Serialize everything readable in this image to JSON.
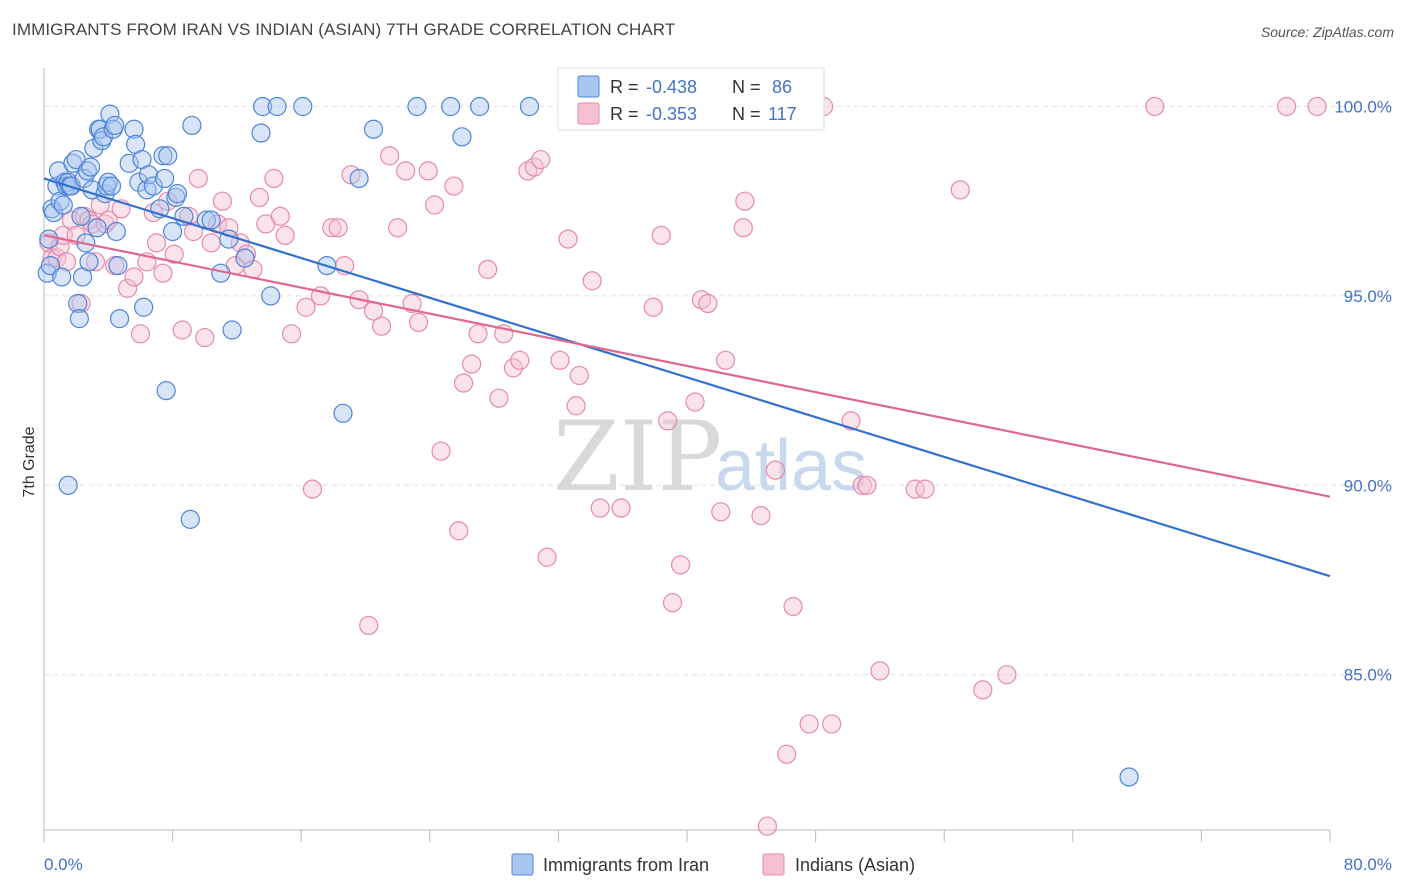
{
  "title": "IMMIGRANTS FROM IRAN VS INDIAN (ASIAN) 7TH GRADE CORRELATION CHART",
  "source": "Source: ZipAtlas.com",
  "watermark": {
    "zip": "ZIP",
    "atlas": "atlas"
  },
  "colors": {
    "iran": "#4f84d9",
    "indian": "#e68aab",
    "iran_fill": "#a9c6f0",
    "indian_fill": "#f5c0d2",
    "iran_line": "#3271cf",
    "indian_line": "#e0688f"
  },
  "stats": {
    "iran": {
      "r_label": "R =",
      "r_value": "-0.438",
      "n_label": "N =",
      "n_value": "86"
    },
    "indian": {
      "r_label": "R =",
      "r_value": "-0.353",
      "n_label": "N =",
      "n_value": "117"
    }
  },
  "chart_data": {
    "type": "scatter",
    "title": "IMMIGRANTS FROM IRAN VS INDIAN (ASIAN) 7TH GRADE CORRELATION CHART",
    "xlabel": "",
    "ylabel": "7th Grade",
    "xlim": [
      0,
      80
    ],
    "ylim": [
      80.9,
      100.7
    ],
    "x_tick_labels": [
      "0.0%",
      "80.0%"
    ],
    "y_ticks": [
      85,
      90,
      95,
      100
    ],
    "y_tick_labels": [
      "85.0%",
      "90.0%",
      "95.0%",
      "100.0%"
    ],
    "grid": true,
    "legend_position": "bottom-center",
    "series": [
      {
        "name": "Immigrants from Iran",
        "trend": {
          "x": [
            0,
            80
          ],
          "y": [
            98.1,
            87.6
          ]
        },
        "points": [
          [
            0.2,
            95.6
          ],
          [
            0.3,
            96.5
          ],
          [
            0.4,
            95.8
          ],
          [
            0.5,
            97.3
          ],
          [
            0.6,
            97.2
          ],
          [
            0.8,
            97.9
          ],
          [
            0.9,
            98.3
          ],
          [
            1.0,
            97.5
          ],
          [
            1.1,
            95.5
          ],
          [
            1.2,
            97.4
          ],
          [
            1.3,
            98.0
          ],
          [
            1.4,
            97.9
          ],
          [
            1.5,
            98.0
          ],
          [
            1.6,
            97.9
          ],
          [
            1.7,
            97.9
          ],
          [
            1.8,
            98.5
          ],
          [
            2.0,
            98.6
          ],
          [
            2.1,
            94.8
          ],
          [
            2.2,
            94.4
          ],
          [
            2.3,
            97.1
          ],
          [
            2.4,
            95.5
          ],
          [
            2.5,
            98.1
          ],
          [
            2.6,
            96.4
          ],
          [
            2.7,
            98.3
          ],
          [
            2.8,
            95.9
          ],
          [
            2.9,
            98.4
          ],
          [
            3.0,
            97.8
          ],
          [
            3.1,
            98.9
          ],
          [
            3.3,
            96.8
          ],
          [
            3.4,
            99.4
          ],
          [
            3.5,
            99.4
          ],
          [
            3.6,
            99.1
          ],
          [
            3.7,
            99.2
          ],
          [
            3.8,
            97.7
          ],
          [
            3.9,
            97.9
          ],
          [
            4.0,
            98.0
          ],
          [
            4.1,
            99.8
          ],
          [
            4.2,
            97.9
          ],
          [
            4.3,
            99.4
          ],
          [
            4.4,
            99.5
          ],
          [
            4.5,
            96.7
          ],
          [
            4.6,
            95.8
          ],
          [
            4.7,
            94.4
          ],
          [
            5.3,
            98.5
          ],
          [
            5.6,
            99.4
          ],
          [
            5.7,
            99.0
          ],
          [
            5.9,
            98.0
          ],
          [
            6.1,
            98.6
          ],
          [
            6.2,
            94.7
          ],
          [
            6.4,
            97.8
          ],
          [
            6.5,
            98.2
          ],
          [
            6.8,
            97.9
          ],
          [
            7.2,
            97.3
          ],
          [
            7.4,
            98.7
          ],
          [
            7.5,
            98.1
          ],
          [
            7.6,
            92.5
          ],
          [
            7.7,
            98.7
          ],
          [
            8.0,
            96.7
          ],
          [
            8.2,
            97.6
          ],
          [
            8.3,
            97.7
          ],
          [
            8.7,
            97.1
          ],
          [
            9.1,
            89.1
          ],
          [
            9.2,
            99.5
          ],
          [
            10.1,
            97.0
          ],
          [
            10.4,
            97.0
          ],
          [
            11.0,
            95.6
          ],
          [
            11.5,
            96.5
          ],
          [
            11.7,
            94.1
          ],
          [
            12.5,
            96.0
          ],
          [
            13.5,
            99.3
          ],
          [
            13.6,
            100.0
          ],
          [
            14.1,
            95.0
          ],
          [
            14.5,
            100.0
          ],
          [
            16.1,
            100.0
          ],
          [
            17.6,
            95.8
          ],
          [
            18.6,
            91.9
          ],
          [
            19.6,
            98.1
          ],
          [
            20.5,
            99.4
          ],
          [
            23.2,
            100.0
          ],
          [
            25.3,
            100.0
          ],
          [
            26.0,
            99.2
          ],
          [
            27.1,
            100.0
          ],
          [
            30.2,
            100.0
          ],
          [
            36.5,
            100.0
          ],
          [
            67.5,
            82.3
          ],
          [
            1.5,
            90.0
          ]
        ]
      },
      {
        "name": "Indians (Asian)",
        "trend": {
          "x": [
            0,
            80
          ],
          "y": [
            96.6,
            89.7
          ]
        },
        "points": [
          [
            0.3,
            96.4
          ],
          [
            0.5,
            96.0
          ],
          [
            0.8,
            96.0
          ],
          [
            1.0,
            96.3
          ],
          [
            1.2,
            96.6
          ],
          [
            1.4,
            95.9
          ],
          [
            1.7,
            97.0
          ],
          [
            2.0,
            96.6
          ],
          [
            2.3,
            94.8
          ],
          [
            2.5,
            97.1
          ],
          [
            2.8,
            97.0
          ],
          [
            3.0,
            96.9
          ],
          [
            3.2,
            95.9
          ],
          [
            3.5,
            97.4
          ],
          [
            3.8,
            96.9
          ],
          [
            4.0,
            97.0
          ],
          [
            4.4,
            95.8
          ],
          [
            4.8,
            97.3
          ],
          [
            5.2,
            95.2
          ],
          [
            5.6,
            95.5
          ],
          [
            6.0,
            94.0
          ],
          [
            6.4,
            95.9
          ],
          [
            6.8,
            97.2
          ],
          [
            7.0,
            96.4
          ],
          [
            7.4,
            95.6
          ],
          [
            7.7,
            97.5
          ],
          [
            8.1,
            96.1
          ],
          [
            8.6,
            94.1
          ],
          [
            9.0,
            97.1
          ],
          [
            9.3,
            96.7
          ],
          [
            9.6,
            98.1
          ],
          [
            10.0,
            93.9
          ],
          [
            10.4,
            96.4
          ],
          [
            10.8,
            96.9
          ],
          [
            11.1,
            97.5
          ],
          [
            11.5,
            96.8
          ],
          [
            11.9,
            95.8
          ],
          [
            12.2,
            96.4
          ],
          [
            12.6,
            96.1
          ],
          [
            13.0,
            95.7
          ],
          [
            13.4,
            97.6
          ],
          [
            13.8,
            96.9
          ],
          [
            14.3,
            98.1
          ],
          [
            14.7,
            97.1
          ],
          [
            15.0,
            96.6
          ],
          [
            15.4,
            94.0
          ],
          [
            16.3,
            94.7
          ],
          [
            16.7,
            89.9
          ],
          [
            17.2,
            95.0
          ],
          [
            17.9,
            96.8
          ],
          [
            18.3,
            96.8
          ],
          [
            18.7,
            95.8
          ],
          [
            19.1,
            98.2
          ],
          [
            19.6,
            94.9
          ],
          [
            20.2,
            86.3
          ],
          [
            20.5,
            94.6
          ],
          [
            21.0,
            94.2
          ],
          [
            21.5,
            98.7
          ],
          [
            22.0,
            96.8
          ],
          [
            22.5,
            98.3
          ],
          [
            22.9,
            94.8
          ],
          [
            23.3,
            94.3
          ],
          [
            23.9,
            98.3
          ],
          [
            24.3,
            97.4
          ],
          [
            24.7,
            90.9
          ],
          [
            25.5,
            97.9
          ],
          [
            25.8,
            88.8
          ],
          [
            26.1,
            92.7
          ],
          [
            26.6,
            93.2
          ],
          [
            27.0,
            94.0
          ],
          [
            27.6,
            95.7
          ],
          [
            28.3,
            92.3
          ],
          [
            28.6,
            94.0
          ],
          [
            29.2,
            93.1
          ],
          [
            29.6,
            93.3
          ],
          [
            30.1,
            98.3
          ],
          [
            30.5,
            98.4
          ],
          [
            30.9,
            98.6
          ],
          [
            31.3,
            88.1
          ],
          [
            32.1,
            93.3
          ],
          [
            32.6,
            96.5
          ],
          [
            33.1,
            92.1
          ],
          [
            33.3,
            92.9
          ],
          [
            34.1,
            95.4
          ],
          [
            34.6,
            89.4
          ],
          [
            35.9,
            89.4
          ],
          [
            37.9,
            94.7
          ],
          [
            38.4,
            96.6
          ],
          [
            38.8,
            91.7
          ],
          [
            39.1,
            86.9
          ],
          [
            39.6,
            87.9
          ],
          [
            40.5,
            92.2
          ],
          [
            40.9,
            94.9
          ],
          [
            41.3,
            94.8
          ],
          [
            42.1,
            89.3
          ],
          [
            42.4,
            93.3
          ],
          [
            43.5,
            96.8
          ],
          [
            43.6,
            97.5
          ],
          [
            44.6,
            89.2
          ],
          [
            45.5,
            90.4
          ],
          [
            46.6,
            86.8
          ],
          [
            47.6,
            83.7
          ],
          [
            48.5,
            100.0
          ],
          [
            49.0,
            83.7
          ],
          [
            50.2,
            91.7
          ],
          [
            50.9,
            90.0
          ],
          [
            51.2,
            90.0
          ],
          [
            52.0,
            85.1
          ],
          [
            54.2,
            89.9
          ],
          [
            54.8,
            89.9
          ],
          [
            57.0,
            97.8
          ],
          [
            58.4,
            84.6
          ],
          [
            59.9,
            85.0
          ],
          [
            69.1,
            100.0
          ],
          [
            77.3,
            100.0
          ],
          [
            79.2,
            100.0
          ],
          [
            46.2,
            82.9
          ],
          [
            45.0,
            81.0
          ]
        ]
      }
    ]
  },
  "legend": {
    "iran_label": "Immigrants from Iran",
    "indian_label": "Indians (Asian)"
  }
}
